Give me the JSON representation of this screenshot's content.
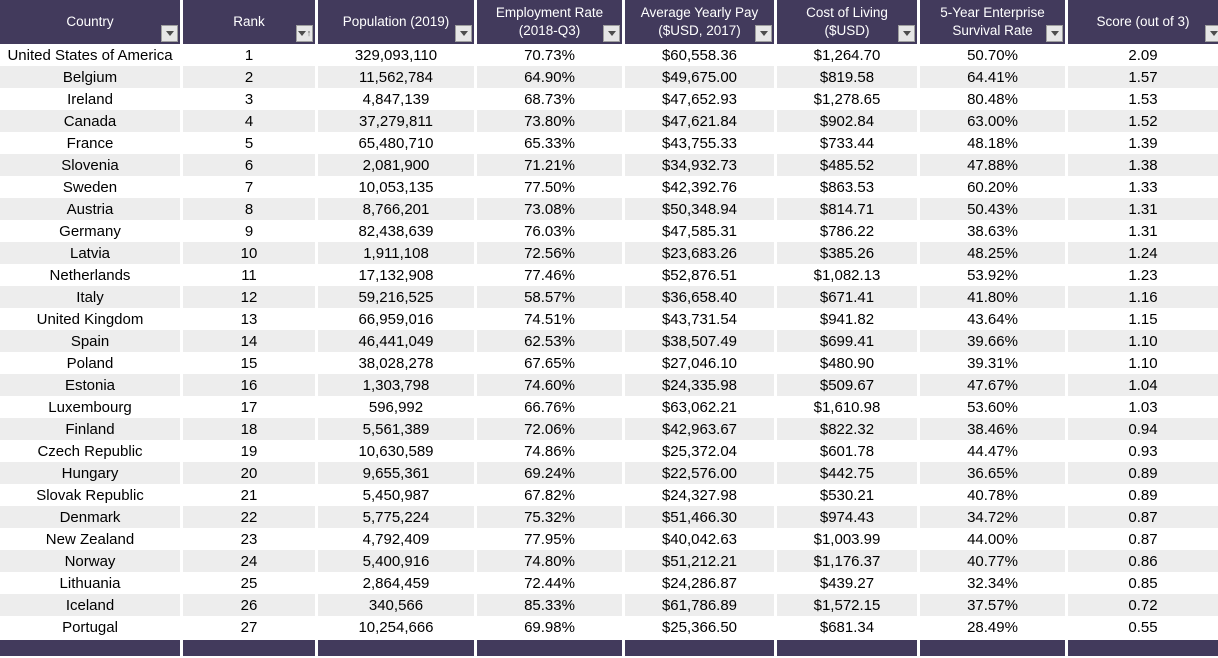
{
  "colors": {
    "header_background": "#423A5C",
    "footer_background": "#423A5C",
    "band_row_background": "#EDEDED",
    "plain_row_background": "#FFFFFF",
    "header_text": "#FFFFFF",
    "body_text": "#000000",
    "filter_button_background": "#E6E6E6",
    "filter_button_border": "#9E9E9E"
  },
  "table": {
    "columns": [
      {
        "id": "country",
        "label": "Country",
        "sorted": false
      },
      {
        "id": "rank",
        "label": "Rank",
        "sorted": true
      },
      {
        "id": "population",
        "label": "Population (2019)",
        "sorted": false
      },
      {
        "id": "employment-rate",
        "label": "Employment Rate\n(2018-Q3)",
        "sorted": false
      },
      {
        "id": "average-yearly-pay",
        "label": "Average Yearly Pay\n($USD, 2017)",
        "sorted": false
      },
      {
        "id": "cost-of-living",
        "label": "Cost of Living\n($USD)",
        "sorted": false
      },
      {
        "id": "survival-rate",
        "label": "5-Year Enterprise\nSurvival Rate",
        "sorted": false
      },
      {
        "id": "score",
        "label": "Score (out of 3)",
        "sorted": false
      }
    ],
    "icons": {
      "dropdown": "filter-dropdown-arrow-icon",
      "sort_ascending": "sort-ascending-icon",
      "sort_ascending_glyph": "↑"
    },
    "rows": [
      [
        "United States of America",
        "1",
        "329,093,110",
        "70.73%",
        "$60,558.36",
        "$1,264.70",
        "50.70%",
        "2.09"
      ],
      [
        "Belgium",
        "2",
        "11,562,784",
        "64.90%",
        "$49,675.00",
        "$819.58",
        "64.41%",
        "1.57"
      ],
      [
        "Ireland",
        "3",
        "4,847,139",
        "68.73%",
        "$47,652.93",
        "$1,278.65",
        "80.48%",
        "1.53"
      ],
      [
        "Canada",
        "4",
        "37,279,811",
        "73.80%",
        "$47,621.84",
        "$902.84",
        "63.00%",
        "1.52"
      ],
      [
        "France",
        "5",
        "65,480,710",
        "65.33%",
        "$43,755.33",
        "$733.44",
        "48.18%",
        "1.39"
      ],
      [
        "Slovenia",
        "6",
        "2,081,900",
        "71.21%",
        "$34,932.73",
        "$485.52",
        "47.88%",
        "1.38"
      ],
      [
        "Sweden",
        "7",
        "10,053,135",
        "77.50%",
        "$42,392.76",
        "$863.53",
        "60.20%",
        "1.33"
      ],
      [
        "Austria",
        "8",
        "8,766,201",
        "73.08%",
        "$50,348.94",
        "$814.71",
        "50.43%",
        "1.31"
      ],
      [
        "Germany",
        "9",
        "82,438,639",
        "76.03%",
        "$47,585.31",
        "$786.22",
        "38.63%",
        "1.31"
      ],
      [
        "Latvia",
        "10",
        "1,911,108",
        "72.56%",
        "$23,683.26",
        "$385.26",
        "48.25%",
        "1.24"
      ],
      [
        "Netherlands",
        "11",
        "17,132,908",
        "77.46%",
        "$52,876.51",
        "$1,082.13",
        "53.92%",
        "1.23"
      ],
      [
        "Italy",
        "12",
        "59,216,525",
        "58.57%",
        "$36,658.40",
        "$671.41",
        "41.80%",
        "1.16"
      ],
      [
        "United Kingdom",
        "13",
        "66,959,016",
        "74.51%",
        "$43,731.54",
        "$941.82",
        "43.64%",
        "1.15"
      ],
      [
        "Spain",
        "14",
        "46,441,049",
        "62.53%",
        "$38,507.49",
        "$699.41",
        "39.66%",
        "1.10"
      ],
      [
        "Poland",
        "15",
        "38,028,278",
        "67.65%",
        "$27,046.10",
        "$480.90",
        "39.31%",
        "1.10"
      ],
      [
        "Estonia",
        "16",
        "1,303,798",
        "74.60%",
        "$24,335.98",
        "$509.67",
        "47.67%",
        "1.04"
      ],
      [
        "Luxembourg",
        "17",
        "596,992",
        "66.76%",
        "$63,062.21",
        "$1,610.98",
        "53.60%",
        "1.03"
      ],
      [
        "Finland",
        "18",
        "5,561,389",
        "72.06%",
        "$42,963.67",
        "$822.32",
        "38.46%",
        "0.94"
      ],
      [
        "Czech Republic",
        "19",
        "10,630,589",
        "74.86%",
        "$25,372.04",
        "$601.78",
        "44.47%",
        "0.93"
      ],
      [
        "Hungary",
        "20",
        "9,655,361",
        "69.24%",
        "$22,576.00",
        "$442.75",
        "36.65%",
        "0.89"
      ],
      [
        "Slovak Republic",
        "21",
        "5,450,987",
        "67.82%",
        "$24,327.98",
        "$530.21",
        "40.78%",
        "0.89"
      ],
      [
        "Denmark",
        "22",
        "5,775,224",
        "75.32%",
        "$51,466.30",
        "$974.43",
        "34.72%",
        "0.87"
      ],
      [
        "New Zealand",
        "23",
        "4,792,409",
        "77.95%",
        "$40,042.63",
        "$1,003.99",
        "44.00%",
        "0.87"
      ],
      [
        "Norway",
        "24",
        "5,400,916",
        "74.80%",
        "$51,212.21",
        "$1,176.37",
        "40.77%",
        "0.86"
      ],
      [
        "Lithuania",
        "25",
        "2,864,459",
        "72.44%",
        "$24,286.87",
        "$439.27",
        "32.34%",
        "0.85"
      ],
      [
        "Iceland",
        "26",
        "340,566",
        "85.33%",
        "$61,786.89",
        "$1,572.15",
        "37.57%",
        "0.72"
      ],
      [
        "Portugal",
        "27",
        "10,254,666",
        "69.98%",
        "$25,366.50",
        "$681.34",
        "28.49%",
        "0.55"
      ]
    ]
  }
}
